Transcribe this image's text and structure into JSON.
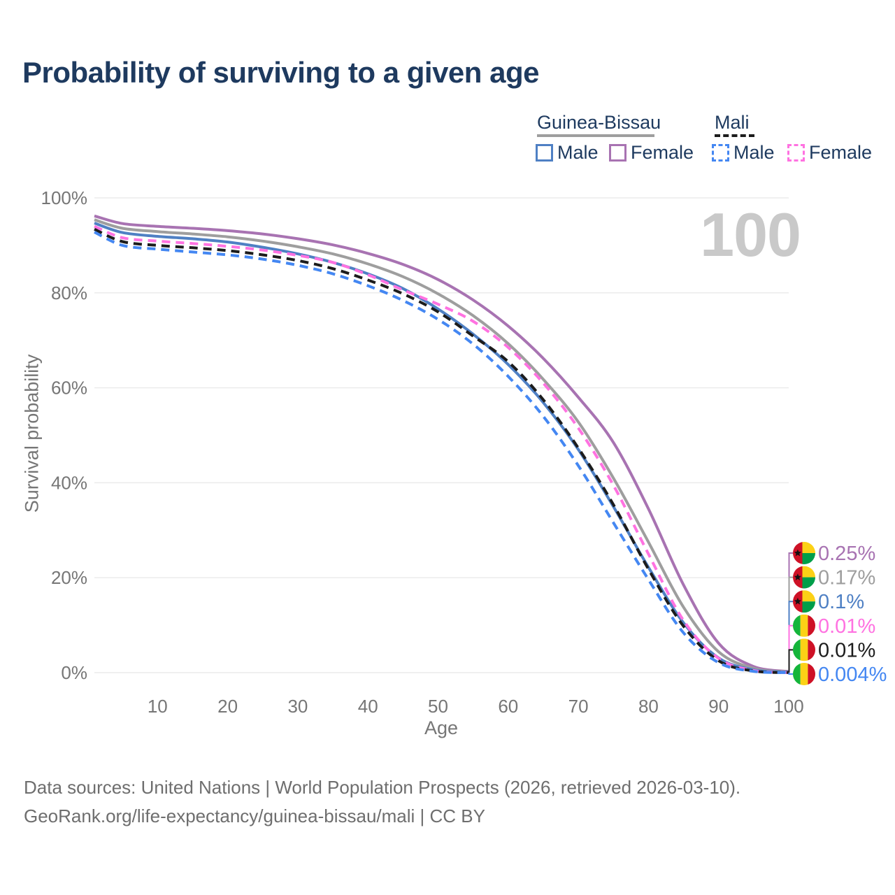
{
  "title": "Probability of surviving to a given age",
  "age_watermark": "100",
  "legend": {
    "position": "top-right",
    "groups": [
      {
        "name": "Guinea-Bissau",
        "rule_series_index": 1,
        "items": [
          {
            "label": "Male",
            "series_index": 2
          },
          {
            "label": "Female",
            "series_index": 0
          }
        ]
      },
      {
        "name": "Mali",
        "rule_series_index": 4,
        "items": [
          {
            "label": "Male",
            "series_index": 5
          },
          {
            "label": "Female",
            "series_index": 3
          }
        ]
      }
    ]
  },
  "chart_data": {
    "type": "line",
    "title": "Probability of surviving to a given age",
    "xlabel": "Age",
    "ylabel": "Survival probability",
    "xlim": [
      1,
      100
    ],
    "ylim": [
      0,
      100
    ],
    "grid": "horizontal",
    "x": [
      1,
      5,
      10,
      15,
      20,
      25,
      30,
      35,
      40,
      45,
      50,
      55,
      60,
      65,
      70,
      75,
      80,
      85,
      90,
      95,
      100
    ],
    "xticks": [
      10,
      20,
      30,
      40,
      50,
      60,
      70,
      80,
      90,
      100
    ],
    "yticks": [
      {
        "value": 0,
        "label": "0%"
      },
      {
        "value": 20,
        "label": "20%"
      },
      {
        "value": 40,
        "label": "40%"
      },
      {
        "value": 60,
        "label": "60%"
      },
      {
        "value": 80,
        "label": "80%"
      },
      {
        "value": 100,
        "label": "100%"
      }
    ],
    "series": [
      {
        "id": "guinea-bissau-female",
        "country": "Guinea-Bissau",
        "sex": "Female",
        "color": "#a873b2",
        "dash": false,
        "flag": "guinea-bissau",
        "end_label": "0.25%",
        "values": [
          96.2,
          94.6,
          94.0,
          93.6,
          93.1,
          92.4,
          91.4,
          90.1,
          88.3,
          86.0,
          82.8,
          78.5,
          73.0,
          66.2,
          58.0,
          48.5,
          34.5,
          18.5,
          6.2,
          1.3,
          0.25
        ]
      },
      {
        "id": "guinea-bissau-both",
        "country": "Guinea-Bissau",
        "sex": "Both sexes",
        "color": "#9e9e9e",
        "dash": false,
        "flag": "guinea-bissau",
        "end_label": "0.17%",
        "values": [
          95.4,
          93.6,
          92.9,
          92.4,
          91.8,
          90.9,
          89.7,
          88.2,
          86.1,
          83.4,
          79.8,
          75.2,
          69.3,
          61.8,
          52.8,
          41.0,
          27.5,
          13.8,
          4.4,
          0.9,
          0.17
        ]
      },
      {
        "id": "guinea-bissau-male",
        "country": "Guinea-Bissau",
        "sex": "Male",
        "color": "#4f80c4",
        "dash": false,
        "flag": "guinea-bissau",
        "end_label": "0.1%",
        "values": [
          94.7,
          92.7,
          91.9,
          91.4,
          90.7,
          89.6,
          88.2,
          86.4,
          84.0,
          80.9,
          76.6,
          71.3,
          64.9,
          56.9,
          47.0,
          35.0,
          22.2,
          10.5,
          3.1,
          0.6,
          0.1
        ]
      },
      {
        "id": "mali-female",
        "country": "Mali",
        "sex": "Female",
        "color": "#ff72e1",
        "dash": true,
        "flag": "mali",
        "end_label": "0.01%",
        "values": [
          94.0,
          91.6,
          90.9,
          90.4,
          89.8,
          89.0,
          87.9,
          86.4,
          83.8,
          80.6,
          77.6,
          74.0,
          68.5,
          61.0,
          51.5,
          39.5,
          25.0,
          11.0,
          3.0,
          0.45,
          0.01
        ]
      },
      {
        "id": "mali-both",
        "country": "Mali",
        "sex": "Both sexes",
        "color": "#1c1c1c",
        "dash": true,
        "flag": "mali",
        "end_label": "0.01%",
        "values": [
          93.4,
          90.8,
          90.0,
          89.5,
          88.9,
          88.0,
          86.8,
          85.1,
          82.7,
          79.8,
          76.0,
          70.9,
          65.5,
          57.5,
          47.3,
          35.4,
          21.8,
          9.8,
          2.5,
          0.35,
          0.01
        ]
      },
      {
        "id": "mali-male",
        "country": "Mali",
        "sex": "Male",
        "color": "#4487f2",
        "dash": true,
        "flag": "mali",
        "end_label": "0.004%",
        "values": [
          92.8,
          90.0,
          89.2,
          88.6,
          88.0,
          87.1,
          85.8,
          84.0,
          81.5,
          78.4,
          74.4,
          69.2,
          62.4,
          54.0,
          43.6,
          31.6,
          19.6,
          8.4,
          2.1,
          0.28,
          0.004
        ]
      }
    ]
  },
  "flag_colors": {
    "guinea-bissau": {
      "red": "#ce1126",
      "yellow": "#fcd116",
      "green": "#009e49",
      "star": "#111111"
    },
    "mali": {
      "green": "#14b53a",
      "yellow": "#fcd116",
      "red": "#ce1126"
    }
  },
  "style": {
    "grid_color": "#ebebeb",
    "tick_color": "#767676",
    "text_color": "#1e3a5f",
    "watermark_color": "#c9c9c9"
  },
  "footer": {
    "lines": [
      "Data sources: United Nations | World Population Prospects (2026, retrieved 2026-03-10).",
      "GeoRank.org/life-expectancy/guinea-bissau/mali | CC BY"
    ]
  }
}
